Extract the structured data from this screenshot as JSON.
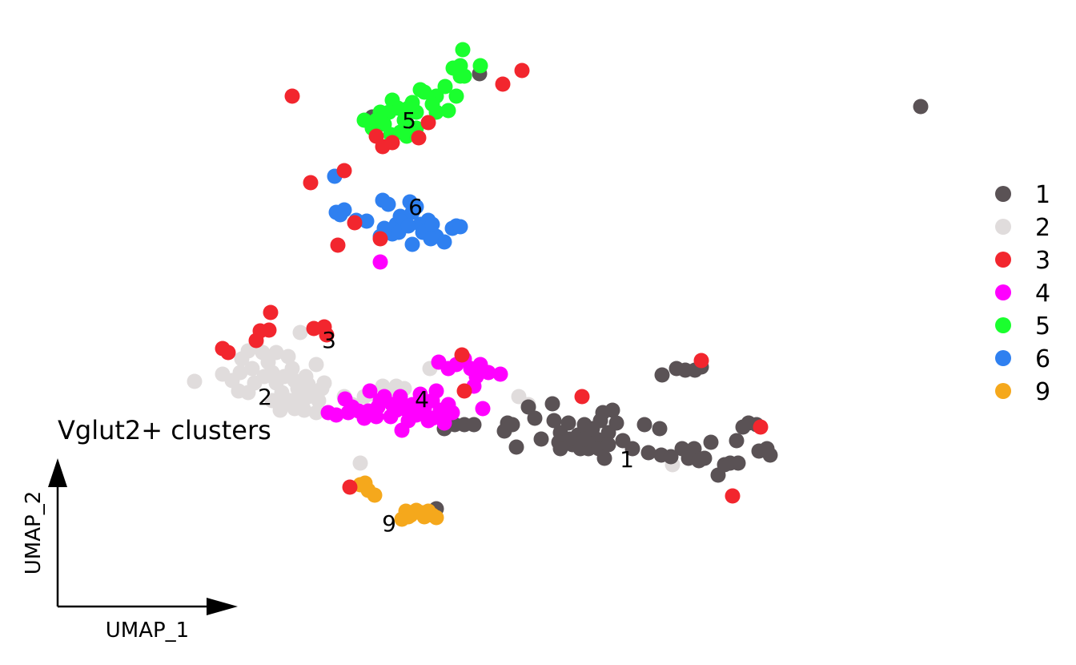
{
  "chart_data": {
    "type": "scatter",
    "title": "Vglut2+ clusters",
    "xlabel": "UMAP_1",
    "ylabel": "UMAP_2",
    "xlim": [
      0,
      1344
    ],
    "ylim": [
      0,
      830
    ],
    "legend_position": "right",
    "grid": false,
    "cluster_labels": [
      {
        "text": "5",
        "x": 511,
        "y": 150
      },
      {
        "text": "6",
        "x": 519,
        "y": 258
      },
      {
        "text": "3",
        "x": 411,
        "y": 424
      },
      {
        "text": "2",
        "x": 331,
        "y": 495
      },
      {
        "text": "4",
        "x": 527,
        "y": 498
      },
      {
        "text": "1",
        "x": 783,
        "y": 573
      },
      {
        "text": "9",
        "x": 486,
        "y": 653
      }
    ],
    "series": [
      {
        "name": "1",
        "color": "#5a5255",
        "points": [
          [
            1150,
            133
          ],
          [
            599,
            92
          ],
          [
            465,
            146
          ],
          [
            545,
            635
          ],
          [
            555,
            535
          ],
          [
            568,
            530
          ],
          [
            580,
            530
          ],
          [
            592,
            530
          ],
          [
            630,
            538
          ],
          [
            645,
            558
          ],
          [
            660,
            508
          ],
          [
            668,
            522
          ],
          [
            676,
            548
          ],
          [
            690,
            504
          ],
          [
            692,
            525
          ],
          [
            700,
            540
          ],
          [
            710,
            528
          ],
          [
            715,
            555
          ],
          [
            722,
            543
          ],
          [
            730,
            530
          ],
          [
            735,
            560
          ],
          [
            745,
            548
          ],
          [
            753,
            515
          ],
          [
            755,
            572
          ],
          [
            760,
            540
          ],
          [
            765,
            512
          ],
          [
            770,
            528
          ],
          [
            778,
            550
          ],
          [
            790,
            560
          ],
          [
            805,
            530
          ],
          [
            810,
            565
          ],
          [
            824,
            535
          ],
          [
            826,
            568
          ],
          [
            838,
            570
          ],
          [
            852,
            560
          ],
          [
            860,
            572
          ],
          [
            867,
            560
          ],
          [
            873,
            575
          ],
          [
            880,
            572
          ],
          [
            888,
            552
          ],
          [
            897,
            593
          ],
          [
            905,
            580
          ],
          [
            912,
            578
          ],
          [
            920,
            550
          ],
          [
            922,
            578
          ],
          [
            928,
            533
          ],
          [
            935,
            528
          ],
          [
            945,
            530
          ],
          [
            948,
            563
          ],
          [
            958,
            560
          ],
          [
            962,
            568
          ],
          [
            827,
            468
          ],
          [
            845,
            460
          ],
          [
            856,
            462
          ],
          [
            868,
            462
          ],
          [
            876,
            458
          ],
          [
            725,
            560
          ],
          [
            712,
            548
          ],
          [
            698,
            552
          ],
          [
            730,
            548
          ],
          [
            748,
            560
          ],
          [
            760,
            555
          ],
          [
            634,
            528
          ],
          [
            640,
            530
          ],
          [
            700,
            560
          ],
          [
            740,
            535
          ],
          [
            750,
            525
          ]
        ]
      },
      {
        "name": "2",
        "color": "#e0dcdc",
        "points": [
          [
            243,
            476
          ],
          [
            278,
            467
          ],
          [
            290,
            475
          ],
          [
            298,
            488
          ],
          [
            302,
            448
          ],
          [
            310,
            438
          ],
          [
            315,
            460
          ],
          [
            318,
            478
          ],
          [
            320,
            428
          ],
          [
            328,
            440
          ],
          [
            335,
            452
          ],
          [
            340,
            465
          ],
          [
            345,
            478
          ],
          [
            352,
            490
          ],
          [
            355,
            505
          ],
          [
            360,
            445
          ],
          [
            365,
            460
          ],
          [
            368,
            475
          ],
          [
            372,
            485
          ],
          [
            375,
            498
          ],
          [
            378,
            508
          ],
          [
            382,
            470
          ],
          [
            385,
            480
          ],
          [
            390,
            490
          ],
          [
            395,
            455
          ],
          [
            398,
            500
          ],
          [
            402,
            485
          ],
          [
            405,
            478
          ],
          [
            368,
            510
          ],
          [
            375,
            415
          ],
          [
            380,
            512
          ],
          [
            395,
            515
          ],
          [
            430,
            495
          ],
          [
            440,
            505
          ],
          [
            455,
            495
          ],
          [
            462,
            492
          ],
          [
            478,
            482
          ],
          [
            490,
            490
          ],
          [
            495,
            482
          ],
          [
            505,
            485
          ],
          [
            537,
            460
          ],
          [
            648,
            495
          ],
          [
            660,
            505
          ],
          [
            450,
            578
          ],
          [
            840,
            580
          ],
          [
            340,
            500
          ],
          [
            350,
            512
          ],
          [
            362,
            500
          ],
          [
            330,
            470
          ],
          [
            310,
            490
          ],
          [
            300,
            465
          ],
          [
            345,
            440
          ],
          [
            355,
            470
          ],
          [
            385,
            495
          ]
        ]
      },
      {
        "name": "3",
        "color": "#f2262e",
        "points": [
          [
            365,
            120
          ],
          [
            388,
            228
          ],
          [
            430,
            213
          ],
          [
            443,
            278
          ],
          [
            422,
            306
          ],
          [
            475,
            298
          ],
          [
            478,
            183
          ],
          [
            490,
            178
          ],
          [
            523,
            172
          ],
          [
            535,
            153
          ],
          [
            628,
            105
          ],
          [
            652,
            88
          ],
          [
            338,
            390
          ],
          [
            336,
            412
          ],
          [
            325,
            413
          ],
          [
            392,
            410
          ],
          [
            405,
            408
          ],
          [
            408,
            418
          ],
          [
            278,
            435
          ],
          [
            285,
            440
          ],
          [
            320,
            425
          ],
          [
            577,
            443
          ],
          [
            580,
            488
          ],
          [
            727,
            495
          ],
          [
            876,
            450
          ],
          [
            950,
            533
          ],
          [
            915,
            619
          ],
          [
            437,
            608
          ],
          [
            470,
            170
          ]
        ]
      },
      {
        "name": "4",
        "color": "#ff00ff",
        "points": [
          [
            475,
            327
          ],
          [
            548,
            452
          ],
          [
            560,
            460
          ],
          [
            570,
            455
          ],
          [
            580,
            448
          ],
          [
            588,
            460
          ],
          [
            595,
            470
          ],
          [
            600,
            455
          ],
          [
            610,
            465
          ],
          [
            625,
            467
          ],
          [
            592,
            482
          ],
          [
            603,
            510
          ],
          [
            431,
            498
          ],
          [
            410,
            515
          ],
          [
            420,
            518
          ],
          [
            435,
            515
          ],
          [
            448,
            513
          ],
          [
            460,
            513
          ],
          [
            472,
            508
          ],
          [
            480,
            495
          ],
          [
            488,
            520
          ],
          [
            495,
            512
          ],
          [
            502,
            537
          ],
          [
            510,
            525
          ],
          [
            520,
            518
          ],
          [
            530,
            510
          ],
          [
            540,
            522
          ],
          [
            550,
            512
          ],
          [
            555,
            528
          ],
          [
            560,
            505
          ],
          [
            462,
            488
          ],
          [
            475,
            500
          ],
          [
            500,
            495
          ],
          [
            515,
            505
          ],
          [
            525,
            492
          ],
          [
            540,
            500
          ],
          [
            545,
            488
          ],
          [
            505,
            510
          ],
          [
            490,
            505
          ],
          [
            470,
            520
          ],
          [
            455,
            522
          ],
          [
            440,
            508
          ],
          [
            565,
            515
          ],
          [
            535,
            525
          ]
        ]
      },
      {
        "name": "5",
        "color": "#1aff2e",
        "points": [
          [
            578,
            62
          ],
          [
            566,
            85
          ],
          [
            575,
            82
          ],
          [
            580,
            95
          ],
          [
            600,
            82
          ],
          [
            556,
            108
          ],
          [
            545,
            120
          ],
          [
            540,
            130
          ],
          [
            530,
            115
          ],
          [
            525,
            112
          ],
          [
            520,
            140
          ],
          [
            515,
            128
          ],
          [
            510,
            135
          ],
          [
            505,
            150
          ],
          [
            497,
            135
          ],
          [
            490,
            125
          ],
          [
            486,
            140
          ],
          [
            480,
            155
          ],
          [
            475,
            140
          ],
          [
            470,
            150
          ],
          [
            465,
            160
          ],
          [
            455,
            150
          ],
          [
            500,
            165
          ],
          [
            508,
            170
          ],
          [
            520,
            160
          ],
          [
            545,
            140
          ],
          [
            560,
            138
          ],
          [
            570,
            120
          ],
          [
            575,
            95
          ],
          [
            488,
            168
          ]
        ]
      },
      {
        "name": "6",
        "color": "#2f80f0",
        "points": [
          [
            418,
            220
          ],
          [
            420,
            265
          ],
          [
            425,
            268
          ],
          [
            430,
            262
          ],
          [
            445,
            275
          ],
          [
            458,
            276
          ],
          [
            478,
            250
          ],
          [
            485,
            255
          ],
          [
            475,
            295
          ],
          [
            480,
            285
          ],
          [
            490,
            292
          ],
          [
            495,
            280
          ],
          [
            500,
            270
          ],
          [
            505,
            275
          ],
          [
            512,
            252
          ],
          [
            515,
            265
          ],
          [
            520,
            258
          ],
          [
            525,
            280
          ],
          [
            528,
            290
          ],
          [
            535,
            275
          ],
          [
            540,
            280
          ],
          [
            545,
            295
          ],
          [
            555,
            302
          ],
          [
            565,
            285
          ],
          [
            570,
            282
          ],
          [
            575,
            283
          ],
          [
            515,
            305
          ],
          [
            538,
            298
          ],
          [
            498,
            290
          ],
          [
            510,
            282
          ]
        ]
      },
      {
        "name": "9",
        "color": "#f5a81c",
        "points": [
          [
            450,
            605
          ],
          [
            456,
            603
          ],
          [
            460,
            612
          ],
          [
            468,
            618
          ],
          [
            502,
            648
          ],
          [
            507,
            638
          ],
          [
            513,
            643
          ],
          [
            520,
            637
          ],
          [
            527,
            640
          ],
          [
            535,
            638
          ],
          [
            540,
            643
          ],
          [
            545,
            646
          ],
          [
            510,
            645
          ],
          [
            530,
            645
          ]
        ]
      }
    ],
    "legend": [
      "1",
      "2",
      "3",
      "4",
      "5",
      "6",
      "9"
    ]
  }
}
